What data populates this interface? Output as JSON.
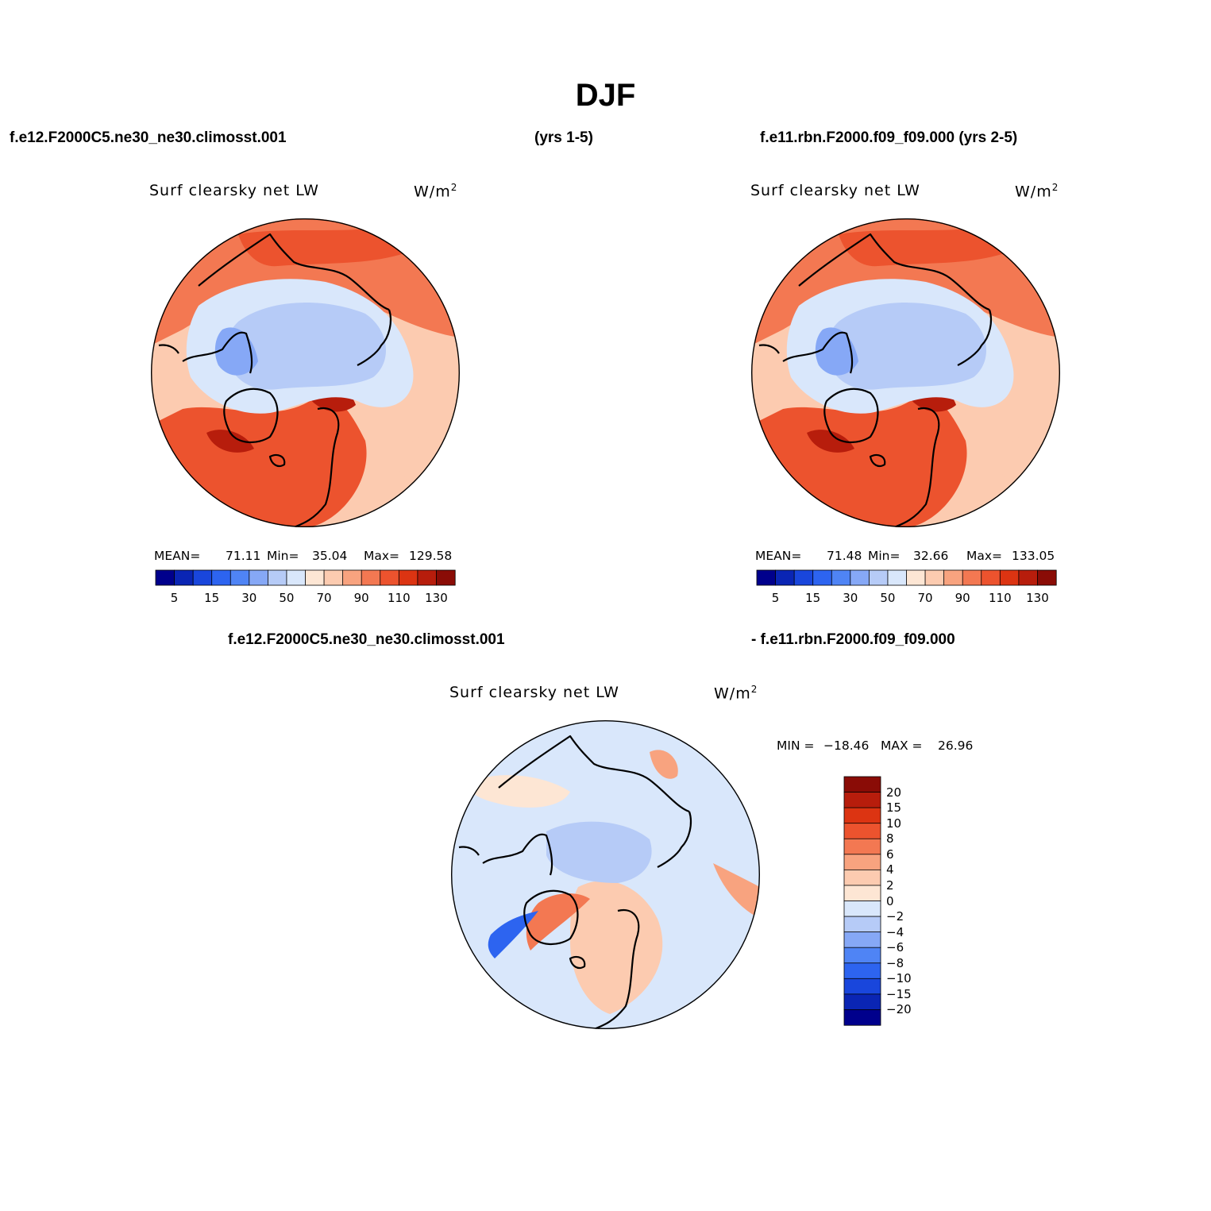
{
  "page": {
    "title": "DJF",
    "case1_label": "f.e12.F2000C5.ne30_ne30.climosst.001",
    "case1_years": "(yrs 1-5)",
    "case2_label": "f.e11.rbn.F2000.f09_f09.000 (yrs 2-5)",
    "diff_label_left": "f.e12.F2000C5.ne30_ne30.climosst.001",
    "diff_label_right": "- f.e11.rbn.F2000.f09_f09.000"
  },
  "colors": {
    "horizontal_scale": [
      "#00008c",
      "#0a25b4",
      "#1946dc",
      "#2d64f0",
      "#4f84f5",
      "#86a8f6",
      "#b6cbf7",
      "#d9e7fb",
      "#fde6d4",
      "#fccbb0",
      "#f8a37f",
      "#f37852",
      "#ec532e",
      "#dc3412",
      "#b71d0c",
      "#8a0c06"
    ],
    "diff_scale": [
      "#00008c",
      "#0a25b4",
      "#1946dc",
      "#2d64f0",
      "#4f84f5",
      "#86a8f6",
      "#b6cbf7",
      "#d9e7fb",
      "#fde6d4",
      "#fccbb0",
      "#f8a37f",
      "#f37852",
      "#ec532e",
      "#dc3412",
      "#b71d0c",
      "#8a0c06"
    ],
    "coast": "#000000"
  },
  "chart_data": [
    {
      "type": "heatmap",
      "projection": "north polar stereographic",
      "title": "Surf clearsky net LW",
      "units_base": "W/m",
      "units_exp": "2",
      "stats": {
        "mean_label": "MEAN=",
        "mean": "71.11",
        "min_label": "Min=",
        "min": "35.04",
        "max_label": "Max=",
        "max": "129.58"
      },
      "colorbar_ticks": [
        "5",
        "15",
        "30",
        "50",
        "70",
        "90",
        "110",
        "130"
      ],
      "contour_levels": [
        0,
        5,
        10,
        15,
        20,
        30,
        40,
        50,
        60,
        70,
        80,
        90,
        100,
        110,
        120,
        130
      ]
    },
    {
      "type": "heatmap",
      "projection": "north polar stereographic",
      "title": "Surf clearsky net LW",
      "units_base": "W/m",
      "units_exp": "2",
      "stats": {
        "mean_label": "MEAN=",
        "mean": "71.48",
        "min_label": "Min=",
        "min": "32.66",
        "max_label": "Max=",
        "max": "133.05"
      },
      "colorbar_ticks": [
        "5",
        "15",
        "30",
        "50",
        "70",
        "90",
        "110",
        "130"
      ],
      "contour_levels": [
        0,
        5,
        10,
        15,
        20,
        30,
        40,
        50,
        60,
        70,
        80,
        90,
        100,
        110,
        120,
        130
      ]
    },
    {
      "type": "heatmap",
      "projection": "north polar stereographic",
      "title": "Surf clearsky net LW",
      "units_base": "W/m",
      "units_exp": "2",
      "stats": {
        "min_label": "MIN =",
        "min": "−18.46",
        "max_label": "MAX =",
        "max": "26.96"
      },
      "colorbar_ticks": [
        "20",
        "15",
        "10",
        "8",
        "6",
        "4",
        "2",
        "0",
        "−2",
        "−4",
        "−6",
        "−8",
        "−10",
        "−15",
        "−20"
      ]
    }
  ]
}
